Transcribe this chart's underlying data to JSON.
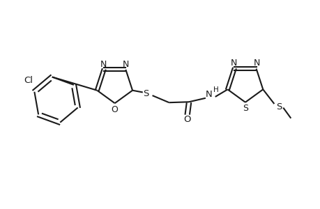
{
  "bg_color": "#ffffff",
  "line_color": "#1a1a1a",
  "lw": 1.5,
  "fs": 9.5,
  "figsize": [
    4.6,
    3.0
  ],
  "dpi": 100,
  "xlim": [
    -0.5,
    9.5
  ],
  "ylim": [
    -0.5,
    5.5
  ]
}
